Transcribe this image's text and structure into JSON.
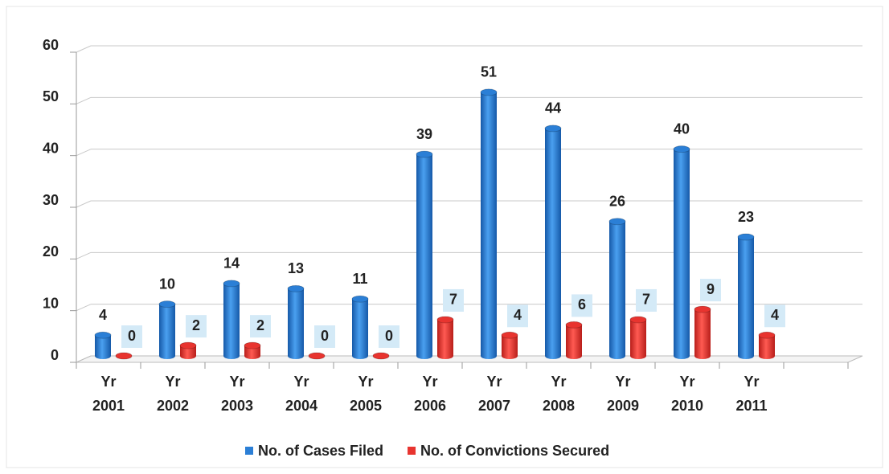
{
  "chart_data": {
    "type": "bar",
    "categories": [
      "Yr 2001",
      "Yr 2002",
      "Yr 2003",
      "Yr 2004",
      "Yr 2005",
      "Yr 2006",
      "Yr 2007",
      "Yr 2008",
      "Yr 2009",
      "Yr 2010",
      "Yr 2011"
    ],
    "series": [
      {
        "name": "No. of Cases Filed",
        "color": "#2b7fd6",
        "values": [
          4,
          10,
          14,
          13,
          11,
          39,
          51,
          44,
          26,
          40,
          23
        ]
      },
      {
        "name": "No. of Convictions Secured",
        "color": "#e8342f",
        "values": [
          0,
          2,
          2,
          0,
          0,
          7,
          4,
          6,
          7,
          9,
          4
        ]
      }
    ],
    "ylim": [
      0,
      60
    ],
    "yticks": [
      0,
      10,
      20,
      30,
      40,
      50,
      60
    ],
    "grid": true,
    "legend": "bottom"
  }
}
